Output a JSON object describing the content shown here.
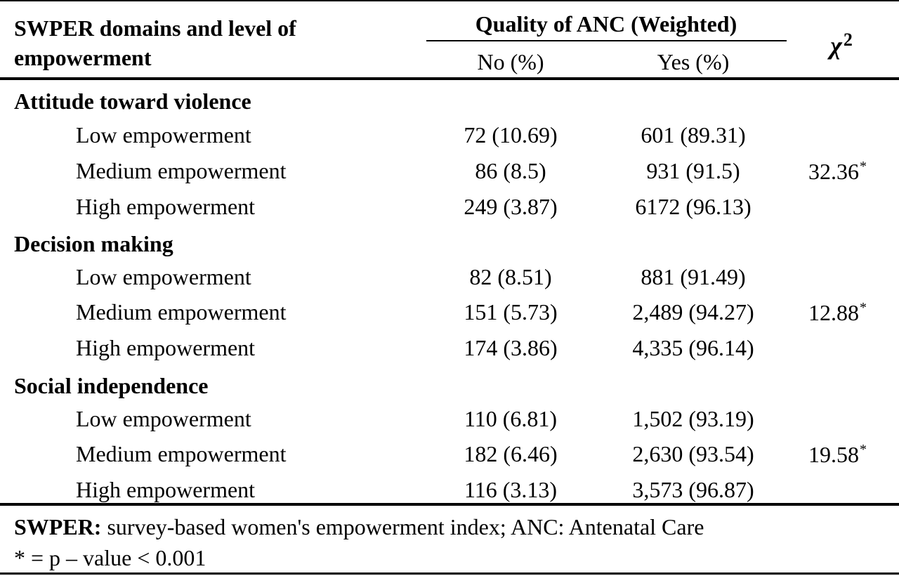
{
  "header": {
    "domain_col_line1": "SWPER domains and level of",
    "domain_col_line2": "empowerment",
    "group_title": "Quality of ANC (Weighted)",
    "no_col": "No (%)",
    "yes_col": "Yes (%)",
    "chi_symbol": "χ",
    "chi_superscript": "2"
  },
  "sections": [
    {
      "title": "Attitude toward violence",
      "rows": [
        {
          "level": "Low empowerment",
          "no": "72 (10.69)",
          "yes": "601 (89.31)"
        },
        {
          "level": "Medium empowerment",
          "no": "86 (8.5)",
          "yes": "931 (91.5)"
        },
        {
          "level": "High empowerment",
          "no": "249 (3.87)",
          "yes": "6172 (96.13)"
        }
      ],
      "chi2": "32.36",
      "chi2_mark": "*"
    },
    {
      "title": "Decision making",
      "rows": [
        {
          "level": "Low empowerment",
          "no": "82 (8.51)",
          "yes": "881 (91.49)"
        },
        {
          "level": "Medium empowerment",
          "no": "151 (5.73)",
          "yes": "2,489 (94.27)"
        },
        {
          "level": "High empowerment",
          "no": "174 (3.86)",
          "yes": "4,335 (96.14)"
        }
      ],
      "chi2": "12.88",
      "chi2_mark": "*"
    },
    {
      "title": "Social independence",
      "rows": [
        {
          "level": "Low empowerment",
          "no": "110 (6.81)",
          "yes": "1,502 (93.19)"
        },
        {
          "level": "Medium empowerment",
          "no": "182 (6.46)",
          "yes": "2,630 (93.54)"
        },
        {
          "level": "High empowerment",
          "no": "116 (3.13)",
          "yes": "3,573 (96.87)"
        }
      ],
      "chi2": "19.58",
      "chi2_mark": "*"
    }
  ],
  "footer": {
    "note1_bold": "SWPER:",
    "note1_rest": " survey-based women's empowerment index; ANC: Antenatal Care",
    "note2": "* = p – value < 0.001"
  }
}
